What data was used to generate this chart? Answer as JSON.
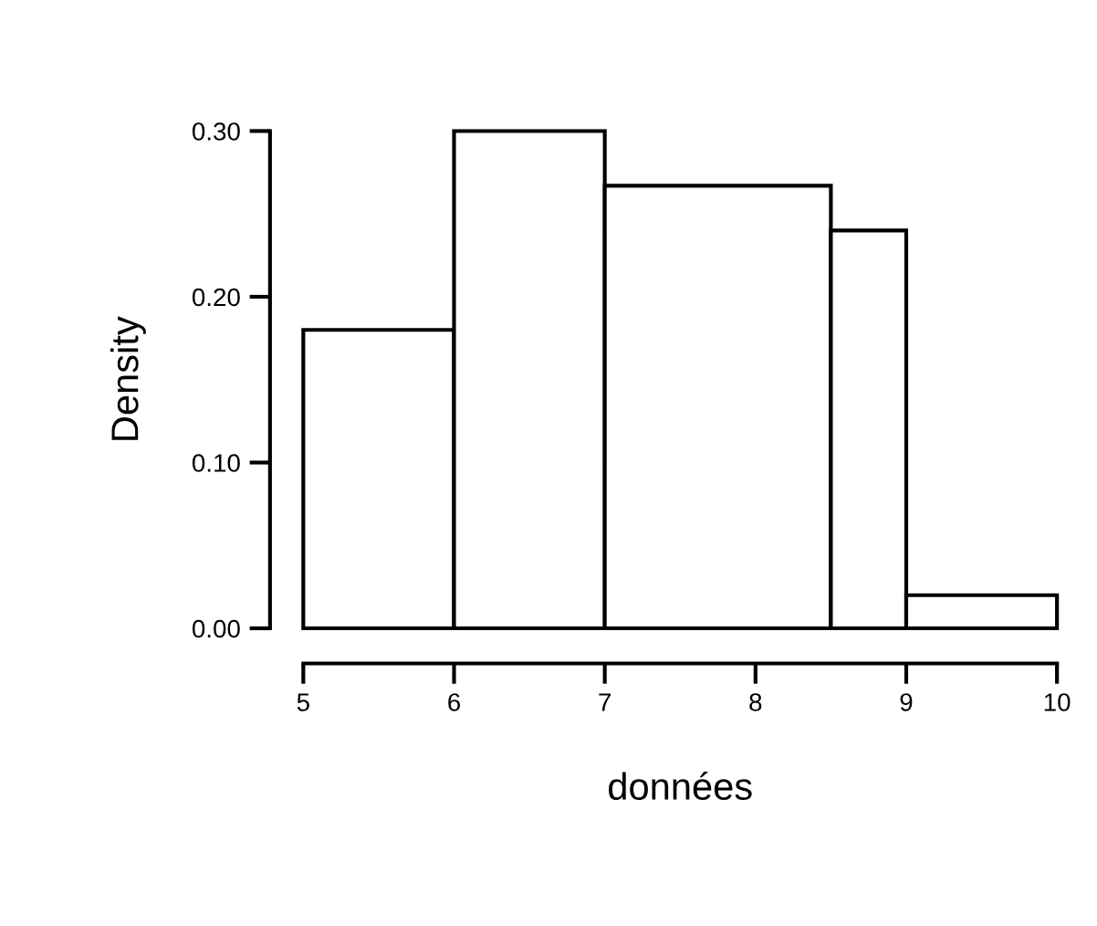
{
  "chart_data": {
    "type": "histogram",
    "xlabel": "données",
    "ylabel": "Density",
    "bins": [
      5,
      6,
      7,
      8.5,
      9,
      10
    ],
    "values": [
      0.18,
      0.3,
      0.267,
      0.24,
      0.02
    ],
    "color": "#ffffff",
    "xlim": [
      5,
      10
    ],
    "xticks": [
      5,
      6,
      7,
      8,
      9,
      10
    ],
    "ylim": [
      0,
      0.3
    ],
    "yticks": [
      {
        "value": 0,
        "label": "0.00"
      },
      {
        "value": 0.1,
        "label": "0.10"
      },
      {
        "value": 0.2,
        "label": "0.20"
      },
      {
        "value": 0.3,
        "label": "0.30"
      }
    ],
    "grid": false
  }
}
